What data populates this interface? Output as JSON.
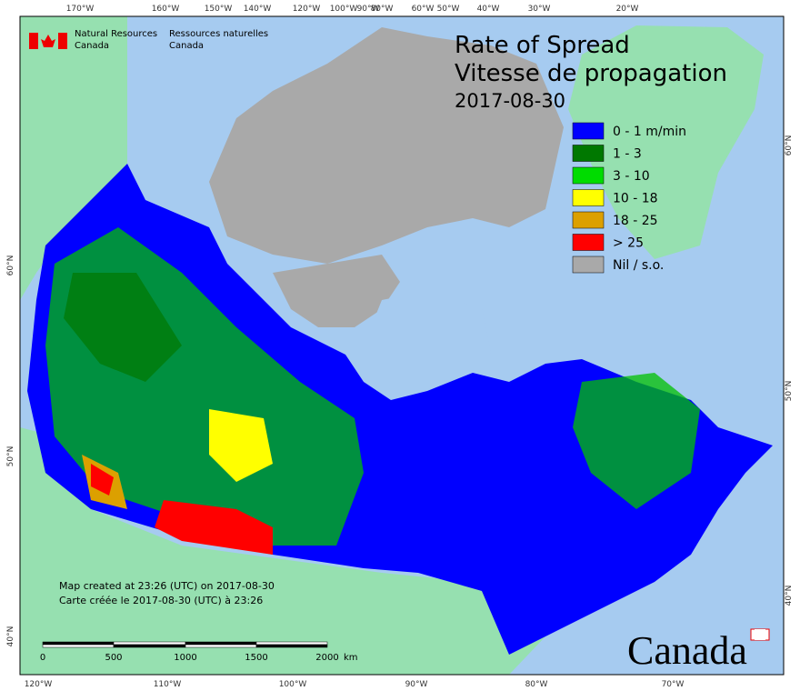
{
  "graticule": {
    "top": [
      "170°W",
      "160°W",
      "150°W",
      "140°W",
      "120°W",
      "100°W",
      "90°W",
      "80°W",
      "60°W",
      "50°W",
      "40°W",
      "30°W",
      "20°W"
    ],
    "bottom": [
      "120°W",
      "110°W",
      "100°W",
      "90°W",
      "80°W",
      "70°W"
    ],
    "left": [
      "60°N",
      "50°N",
      "40°N"
    ],
    "right": [
      "60°N",
      "50°N",
      "40°N"
    ]
  },
  "agency": {
    "en_line1": "Natural Resources",
    "en_line2": "Canada",
    "fr_line1": "Ressources naturelles",
    "fr_line2": "Canada"
  },
  "title": {
    "line1": "Rate of Spread",
    "line2": "Vitesse de propagation",
    "date": "2017-08-30"
  },
  "legend": [
    {
      "label": "0 - 1 m/min",
      "color": "#0000ff"
    },
    {
      "label": "1 - 3",
      "color": "#007800"
    },
    {
      "label": "3 - 10",
      "color": "#00dc00"
    },
    {
      "label": "10 - 18",
      "color": "#ffff00"
    },
    {
      "label": "18 - 25",
      "color": "#dca000"
    },
    {
      "label": "> 25",
      "color": "#ff0000"
    },
    {
      "label": "Nil / s.o.",
      "color": "#a9a9a9"
    }
  ],
  "credits": {
    "en": "Map created at 23:26 (UTC) on 2017-08-30",
    "fr": "Carte créée le 2017-08-30 (UTC) à 23:26"
  },
  "scale": {
    "labels": [
      "0",
      "500",
      "1000",
      "1500",
      "2000"
    ],
    "unit": "km"
  },
  "wordmark": "Canada"
}
